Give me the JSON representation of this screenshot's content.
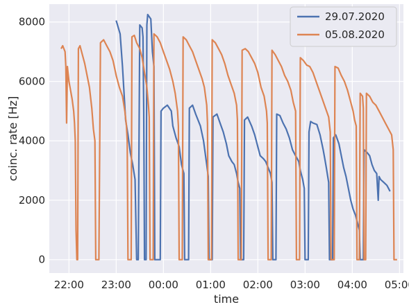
{
  "chart_data": {
    "type": "line",
    "title": "",
    "xlabel": "time",
    "ylabel": "coinc. rate [Hz]",
    "xlim": [
      "21:35",
      "05:05"
    ],
    "ylim": [
      -450,
      8600
    ],
    "x_ticks": [
      "22:00",
      "23:00",
      "00:00",
      "01:00",
      "02:00",
      "03:00",
      "04:00",
      "05:00"
    ],
    "y_ticks": [
      "0",
      "2000",
      "4000",
      "6000",
      "8000"
    ],
    "y_tick_values": [
      0,
      2000,
      4000,
      6000,
      8000
    ],
    "grid": true,
    "background": "#eaeaf2",
    "legend_position": "top-right",
    "series": [
      {
        "name": "29.07.2020",
        "color": "#4c72b0",
        "points": [
          [
            "23:00",
            8050
          ],
          [
            "23:05",
            7600
          ],
          [
            "23:08",
            6500
          ],
          [
            "23:12",
            4700
          ],
          [
            "23:15",
            4200
          ],
          [
            "23:18",
            3600
          ],
          [
            "23:21",
            3200
          ],
          [
            "23:24",
            2700
          ],
          [
            "23:26",
            0
          ],
          [
            "23:28",
            0
          ],
          [
            "23:30",
            7900
          ],
          [
            "23:33",
            7800
          ],
          [
            "23:34",
            7500
          ],
          [
            "23:35",
            5000
          ],
          [
            "23:36",
            0
          ],
          [
            "23:38",
            0
          ],
          [
            "23:39",
            7900
          ],
          [
            "23:40",
            8250
          ],
          [
            "23:44",
            8100
          ],
          [
            "23:46",
            7000
          ],
          [
            "23:48",
            6500
          ],
          [
            "23:49",
            0
          ],
          [
            "23:51",
            0
          ],
          [
            "23:54",
            0
          ],
          [
            "23:56",
            0
          ],
          [
            "23:57",
            5000
          ],
          [
            "24:00",
            5100
          ],
          [
            "24:05",
            5200
          ],
          [
            "24:10",
            5000
          ],
          [
            "24:12",
            4500
          ],
          [
            "24:16",
            4100
          ],
          [
            "24:20",
            3800
          ],
          [
            "24:23",
            3200
          ],
          [
            "24:26",
            2900
          ],
          [
            "24:27",
            0
          ],
          [
            "24:32",
            0
          ],
          [
            "24:33",
            5100
          ],
          [
            "24:37",
            5200
          ],
          [
            "24:41",
            4900
          ],
          [
            "24:47",
            4500
          ],
          [
            "24:51",
            4000
          ],
          [
            "24:53",
            3600
          ],
          [
            "24:55",
            3200
          ],
          [
            "24:57",
            2800
          ],
          [
            "24:58",
            0
          ],
          [
            "25:02",
            0
          ],
          [
            "25:03",
            4800
          ],
          [
            "25:08",
            4900
          ],
          [
            "25:12",
            4600
          ],
          [
            "25:16",
            4300
          ],
          [
            "25:20",
            3900
          ],
          [
            "25:23",
            3500
          ],
          [
            "25:27",
            3300
          ],
          [
            "25:30",
            3200
          ],
          [
            "25:33",
            2900
          ],
          [
            "25:35",
            2600
          ],
          [
            "25:37",
            2400
          ],
          [
            "25:38",
            0
          ],
          [
            "25:42",
            0
          ],
          [
            "25:43",
            4700
          ],
          [
            "25:47",
            4800
          ],
          [
            "25:52",
            4500
          ],
          [
            "25:56",
            4200
          ],
          [
            "26:00",
            3800
          ],
          [
            "26:03",
            3500
          ],
          [
            "26:07",
            3400
          ],
          [
            "26:10",
            3300
          ],
          [
            "26:13",
            3100
          ],
          [
            "26:16",
            2900
          ],
          [
            "26:18",
            2600
          ],
          [
            "26:19",
            0
          ],
          [
            "26:23",
            0
          ],
          [
            "26:24",
            4900
          ],
          [
            "26:28",
            4850
          ],
          [
            "26:32",
            4600
          ],
          [
            "26:36",
            4400
          ],
          [
            "26:40",
            4100
          ],
          [
            "26:44",
            3700
          ],
          [
            "26:48",
            3500
          ],
          [
            "26:52",
            3300
          ],
          [
            "26:54",
            3000
          ],
          [
            "26:57",
            2700
          ],
          [
            "26:59",
            2400
          ],
          [
            "27:00",
            0
          ],
          [
            "27:04",
            0
          ],
          [
            "27:05",
            4300
          ],
          [
            "27:07",
            4650
          ],
          [
            "27:10",
            4600
          ],
          [
            "27:15",
            4550
          ],
          [
            "27:19",
            4200
          ],
          [
            "27:23",
            3700
          ],
          [
            "27:25",
            3400
          ],
          [
            "27:27",
            3100
          ],
          [
            "27:30",
            2600
          ],
          [
            "27:31",
            0
          ],
          [
            "27:35",
            0
          ],
          [
            "27:36",
            4100
          ],
          [
            "27:39",
            4200
          ],
          [
            "27:43",
            3900
          ],
          [
            "27:46",
            3500
          ],
          [
            "27:49",
            3100
          ],
          [
            "27:52",
            2800
          ],
          [
            "27:55",
            2400
          ],
          [
            "27:58",
            2000
          ],
          [
            "28:01",
            1700
          ],
          [
            "28:04",
            1500
          ],
          [
            "28:07",
            1200
          ],
          [
            "28:09",
            1000
          ],
          [
            "28:10",
            0
          ],
          [
            "28:14",
            0
          ],
          [
            "28:15",
            3700
          ],
          [
            "28:19",
            3600
          ],
          [
            "28:22",
            3500
          ],
          [
            "28:25",
            3200
          ],
          [
            "28:28",
            3000
          ],
          [
            "28:31",
            2900
          ],
          [
            "28:33",
            2000
          ],
          [
            "28:34",
            2800
          ],
          [
            "28:36",
            2700
          ],
          [
            "28:40",
            2600
          ],
          [
            "28:44",
            2500
          ],
          [
            "28:46",
            2400
          ],
          [
            "28:48",
            2300
          ]
        ]
      },
      {
        "name": "05.08.2020",
        "color": "#dd8452",
        "points": [
          [
            "21:50",
            7100
          ],
          [
            "21:52",
            7200
          ],
          [
            "21:55",
            7000
          ],
          [
            "21:56",
            6500
          ],
          [
            "21:57",
            4600
          ],
          [
            "21:58",
            6500
          ],
          [
            "22:00",
            6000
          ],
          [
            "22:02",
            5700
          ],
          [
            "22:04",
            5400
          ],
          [
            "22:06",
            5000
          ],
          [
            "22:07",
            4600
          ],
          [
            "22:08",
            4000
          ],
          [
            "22:09",
            1000
          ],
          [
            "22:10",
            0
          ],
          [
            "22:11",
            0
          ],
          [
            "22:12",
            7100
          ],
          [
            "22:14",
            7200
          ],
          [
            "22:17",
            6900
          ],
          [
            "22:20",
            6600
          ],
          [
            "22:23",
            6200
          ],
          [
            "22:26",
            5800
          ],
          [
            "22:29",
            5100
          ],
          [
            "22:31",
            4400
          ],
          [
            "22:33",
            4000
          ],
          [
            "22:34",
            0
          ],
          [
            "22:38",
            0
          ],
          [
            "22:40",
            7300
          ],
          [
            "22:44",
            7400
          ],
          [
            "22:48",
            7200
          ],
          [
            "22:52",
            7000
          ],
          [
            "22:56",
            6700
          ],
          [
            "23:00",
            6200
          ],
          [
            "23:04",
            5800
          ],
          [
            "23:08",
            5500
          ],
          [
            "23:11",
            5000
          ],
          [
            "23:13",
            4500
          ],
          [
            "23:14",
            4000
          ],
          [
            "23:15",
            0
          ],
          [
            "23:19",
            0
          ],
          [
            "23:20",
            7500
          ],
          [
            "23:23",
            7550
          ],
          [
            "23:26",
            7300
          ],
          [
            "23:30",
            7100
          ],
          [
            "23:33",
            6800
          ],
          [
            "23:36",
            6300
          ],
          [
            "23:39",
            5800
          ],
          [
            "23:41",
            5200
          ],
          [
            "23:42",
            4800
          ],
          [
            "23:43",
            0
          ],
          [
            "23:47",
            0
          ],
          [
            "23:48",
            7600
          ],
          [
            "23:52",
            7500
          ],
          [
            "23:56",
            7300
          ],
          [
            "24:00",
            7000
          ],
          [
            "24:04",
            6700
          ],
          [
            "24:08",
            6400
          ],
          [
            "24:12",
            6000
          ],
          [
            "24:15",
            5600
          ],
          [
            "24:18",
            5000
          ],
          [
            "24:19",
            4500
          ],
          [
            "24:20",
            0
          ],
          [
            "24:24",
            0
          ],
          [
            "24:25",
            7500
          ],
          [
            "24:29",
            7400
          ],
          [
            "24:33",
            7200
          ],
          [
            "24:37",
            7000
          ],
          [
            "24:41",
            6700
          ],
          [
            "24:45",
            6400
          ],
          [
            "24:49",
            6100
          ],
          [
            "24:52",
            5800
          ],
          [
            "24:55",
            5200
          ],
          [
            "24:56",
            4600
          ],
          [
            "24:57",
            0
          ],
          [
            "25:01",
            0
          ],
          [
            "25:02",
            7400
          ],
          [
            "25:06",
            7300
          ],
          [
            "25:10",
            7100
          ],
          [
            "25:14",
            6900
          ],
          [
            "25:18",
            6600
          ],
          [
            "25:22",
            6200
          ],
          [
            "25:26",
            5900
          ],
          [
            "25:30",
            5600
          ],
          [
            "25:33",
            5200
          ],
          [
            "25:34",
            4700
          ],
          [
            "25:35",
            0
          ],
          [
            "25:39",
            0
          ],
          [
            "25:40",
            7050
          ],
          [
            "25:44",
            7100
          ],
          [
            "25:48",
            7000
          ],
          [
            "25:52",
            6800
          ],
          [
            "25:56",
            6600
          ],
          [
            "26:00",
            6300
          ],
          [
            "26:04",
            5800
          ],
          [
            "26:08",
            5500
          ],
          [
            "26:11",
            5000
          ],
          [
            "26:12",
            4600
          ],
          [
            "26:13",
            0
          ],
          [
            "26:17",
            0
          ],
          [
            "26:18",
            7050
          ],
          [
            "26:22",
            6900
          ],
          [
            "26:26",
            6700
          ],
          [
            "26:30",
            6500
          ],
          [
            "26:34",
            6200
          ],
          [
            "26:38",
            6000
          ],
          [
            "26:42",
            5700
          ],
          [
            "26:45",
            5300
          ],
          [
            "26:48",
            5000
          ],
          [
            "26:49",
            0
          ],
          [
            "26:53",
            0
          ],
          [
            "26:54",
            6800
          ],
          [
            "26:58",
            6700
          ],
          [
            "27:02",
            6550
          ],
          [
            "27:06",
            6500
          ],
          [
            "27:10",
            6300
          ],
          [
            "27:14",
            6000
          ],
          [
            "27:18",
            5700
          ],
          [
            "27:22",
            5400
          ],
          [
            "27:26",
            5100
          ],
          [
            "27:30",
            4800
          ],
          [
            "27:32",
            4300
          ],
          [
            "27:33",
            0
          ],
          [
            "27:37",
            0
          ],
          [
            "27:38",
            6500
          ],
          [
            "27:42",
            6450
          ],
          [
            "27:46",
            6200
          ],
          [
            "27:50",
            6000
          ],
          [
            "27:54",
            5700
          ],
          [
            "27:58",
            5300
          ],
          [
            "28:01",
            5000
          ],
          [
            "28:03",
            4700
          ],
          [
            "28:05",
            4500
          ],
          [
            "28:06",
            0
          ],
          [
            "28:09",
            0
          ],
          [
            "28:10",
            5600
          ],
          [
            "28:13",
            5500
          ],
          [
            "28:14",
            5100
          ],
          [
            "28:15",
            0
          ],
          [
            "28:17",
            0
          ],
          [
            "28:18",
            5600
          ],
          [
            "28:22",
            5500
          ],
          [
            "28:26",
            5300
          ],
          [
            "28:30",
            5200
          ],
          [
            "28:34",
            5000
          ],
          [
            "28:38",
            4800
          ],
          [
            "28:42",
            4600
          ],
          [
            "28:46",
            4400
          ],
          [
            "28:50",
            4200
          ],
          [
            "28:52",
            3700
          ],
          [
            "28:53",
            0
          ],
          [
            "28:57",
            0
          ]
        ]
      }
    ]
  }
}
